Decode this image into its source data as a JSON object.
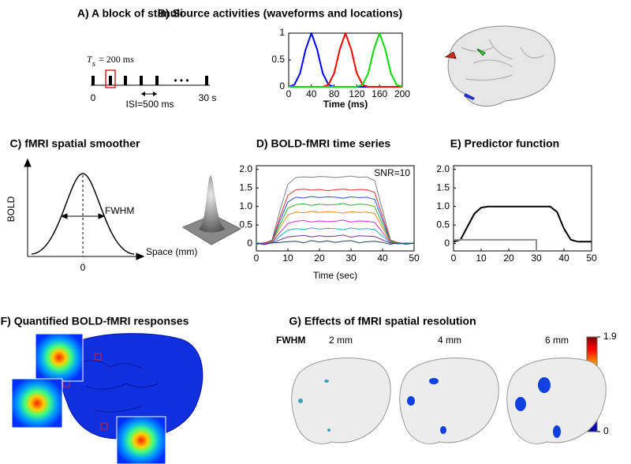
{
  "panels": {
    "A": {
      "title": "A)  A block of stimuli",
      "timing": {
        "symbol": "T",
        "subscript": "s",
        "text": "= 200 ms"
      },
      "start": "0",
      "end": "30 s",
      "ellipsis": "• • •",
      "isi": "ISI=500 ms"
    },
    "C": {
      "title": "C)  fMRI spatial smoother",
      "ylabel": "BOLD",
      "xlabel": "Space (mm)",
      "width_label": "FWHM",
      "origin": "0"
    },
    "F": {
      "title": "F)  Quantified BOLD-fMRI responses",
      "colorbar": {
        "clim": [
          0,
          1.9
        ],
        "ticks": [
          0,
          1.9
        ]
      }
    },
    "G": {
      "title": "G)  Effects of fMRI spatial resolution",
      "row_label": "FWHM",
      "columns": [
        "2 mm",
        "4 mm",
        "6 mm"
      ]
    }
  },
  "chart_data": [
    {
      "type": "line",
      "title": "B)  Source activities (waveforms and locations)",
      "xlabel": "Time (ms)",
      "x": [
        0,
        10,
        20,
        30,
        40,
        50,
        60,
        70,
        80,
        90,
        100,
        110,
        120,
        130,
        140,
        150,
        160,
        170,
        180,
        190,
        200
      ],
      "xlim": [
        0,
        200
      ],
      "xticks": [
        0,
        40,
        80,
        120,
        160,
        200
      ],
      "ylim": [
        0,
        1
      ],
      "yticks": [
        0,
        0.5,
        1
      ],
      "series": [
        {
          "color": "#0000ff",
          "values": [
            0,
            0.04,
            0.25,
            0.7,
            1,
            0.7,
            0.25,
            0.04,
            0,
            0,
            0,
            0,
            0,
            0,
            0,
            0,
            0,
            0,
            0,
            0,
            0
          ]
        },
        {
          "color": "#ff0000",
          "values": [
            0,
            0,
            0,
            0,
            0,
            0,
            0,
            0.04,
            0.25,
            0.7,
            1,
            0.7,
            0.25,
            0.04,
            0,
            0,
            0,
            0,
            0,
            0,
            0
          ]
        },
        {
          "color": "#00dd00",
          "values": [
            0,
            0,
            0,
            0,
            0,
            0,
            0,
            0,
            0,
            0,
            0,
            0,
            0,
            0.04,
            0.25,
            0.7,
            1,
            0.7,
            0.25,
            0.04,
            0
          ]
        }
      ]
    },
    {
      "type": "line",
      "title": "D)  BOLD-fMRI time series",
      "xlabel": "Time (sec)",
      "annotation": "SNR=10",
      "x": [
        0,
        2.5,
        5,
        7.5,
        10,
        12.5,
        15,
        17.5,
        20,
        22.5,
        25,
        27.5,
        30,
        32.5,
        35,
        37.5,
        40,
        42.5,
        45,
        47.5,
        50
      ],
      "xlim": [
        0,
        50
      ],
      "xticks": [
        0,
        10,
        20,
        30,
        40,
        50
      ],
      "ylim": [
        -0.2,
        2.1
      ],
      "yticks": [
        0,
        0.5,
        {
          "value": 1,
          "label": "1.0"
        },
        1.5,
        {
          "value": 2,
          "label": "2.0"
        }
      ],
      "series": [
        {
          "color": "#808080",
          "values": [
            0.02,
            -0.01,
            0.1,
            0.9,
            1.6,
            1.78,
            1.8,
            1.79,
            1.81,
            1.8,
            1.78,
            1.8,
            1.82,
            1.79,
            1.8,
            1.7,
            0.9,
            0.1,
            0.01,
            -0.02,
            0.01
          ]
        },
        {
          "color": "#e03030",
          "values": [
            0,
            0.02,
            0.08,
            0.72,
            1.3,
            1.45,
            1.47,
            1.44,
            1.46,
            1.43,
            1.45,
            1.47,
            1.44,
            1.46,
            1.45,
            1.38,
            0.73,
            0.08,
            0.02,
            -0.01,
            0.01
          ]
        },
        {
          "color": "#3050e0",
          "values": [
            -0.02,
            0.01,
            0.06,
            0.62,
            1.12,
            1.25,
            1.23,
            1.27,
            1.24,
            1.26,
            1.25,
            1.22,
            1.26,
            1.24,
            1.25,
            1.19,
            0.63,
            0.06,
            -0.01,
            0.02,
            0
          ]
        },
        {
          "color": "#30b030",
          "values": [
            0.01,
            -0.02,
            0.05,
            0.52,
            0.95,
            1.05,
            1.07,
            1.03,
            1.06,
            1.04,
            1.05,
            1.08,
            1.03,
            1.06,
            1.05,
            1,
            0.52,
            0.05,
            0.01,
            -0.01,
            0.02
          ]
        },
        {
          "color": "#e09020",
          "values": [
            -0.01,
            0.02,
            0.04,
            0.43,
            0.77,
            0.85,
            0.83,
            0.87,
            0.84,
            0.86,
            0.85,
            0.82,
            0.86,
            0.84,
            0.85,
            0.81,
            0.43,
            0.04,
            -0.02,
            0.01,
            0
          ]
        },
        {
          "color": "#d030d0",
          "values": [
            0.02,
            -0.01,
            0.03,
            0.3,
            0.54,
            0.6,
            0.62,
            0.58,
            0.61,
            0.59,
            0.6,
            0.63,
            0.58,
            0.61,
            0.6,
            0.57,
            0.3,
            0.03,
            0.01,
            -0.02,
            0.01
          ]
        },
        {
          "color": "#20b0c0",
          "values": [
            0,
            0.01,
            0.02,
            0.2,
            0.36,
            0.4,
            0.38,
            0.42,
            0.39,
            0.41,
            0.4,
            0.37,
            0.42,
            0.39,
            0.4,
            0.38,
            0.2,
            0.02,
            -0.01,
            0.01,
            0
          ]
        },
        {
          "color": "#7030a0",
          "values": [
            -0.02,
            0.02,
            0.01,
            0.1,
            0.18,
            0.2,
            0.22,
            0.18,
            0.21,
            0.19,
            0.2,
            0.23,
            0.17,
            0.21,
            0.2,
            0.19,
            0.1,
            0.01,
            0.02,
            -0.01,
            0.01
          ]
        },
        {
          "color": "#204060",
          "values": [
            0.01,
            -0.03,
            0.02,
            0.03,
            0.05,
            0.06,
            0.02,
            0.08,
            0.04,
            0.07,
            0.03,
            0.06,
            0.08,
            0.02,
            0.05,
            0.06,
            0.03,
            -0.02,
            0.02,
            -0.01,
            0.01
          ]
        }
      ]
    },
    {
      "type": "line",
      "title": "E)  Predictor function",
      "x": [
        0,
        2.5,
        5,
        7.5,
        10,
        12.5,
        15,
        17.5,
        20,
        22.5,
        25,
        27.5,
        30,
        32.5,
        35,
        37.5,
        40,
        42.5,
        45,
        47.5,
        50
      ],
      "xlim": [
        0,
        50
      ],
      "xticks": [
        0,
        10,
        20,
        30,
        40,
        50
      ],
      "ylim": [
        -0.2,
        2.1
      ],
      "yticks": [
        0,
        0.5,
        {
          "value": 1,
          "label": "1.0"
        },
        1.5,
        {
          "value": 2,
          "label": "2.0"
        }
      ],
      "series": [
        {
          "color": "#000000",
          "values": [
            0.05,
            0.1,
            0.45,
            0.8,
            0.97,
            1,
            1,
            1,
            1,
            1,
            1,
            1,
            1,
            1,
            1,
            0.85,
            0.4,
            0.1,
            0.05,
            0.05,
            0.05
          ]
        },
        {
          "color": "#909090",
          "x": [
            0,
            30,
            30
          ],
          "values": [
            0.1,
            0.1,
            -0.2
          ]
        }
      ]
    }
  ]
}
